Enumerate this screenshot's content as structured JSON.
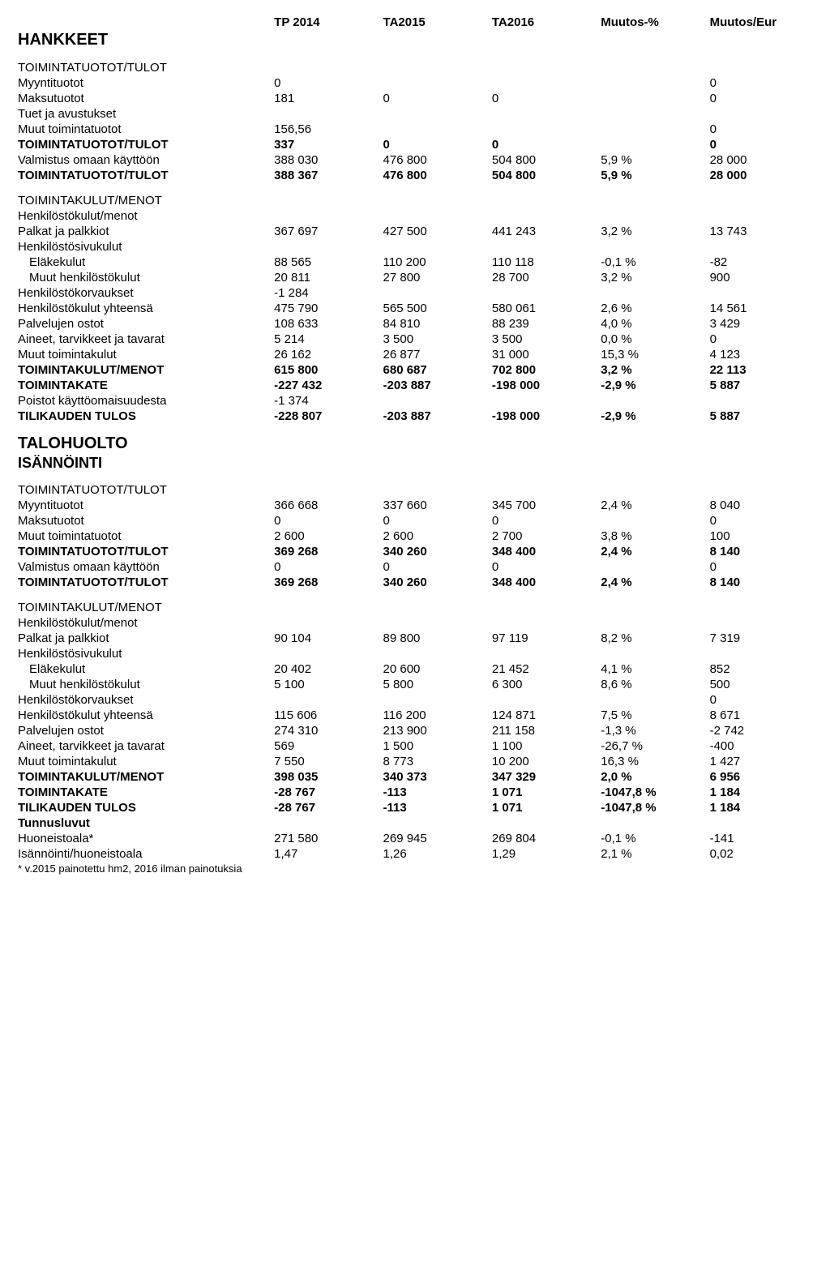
{
  "headers": {
    "c1": "TP 2014",
    "c2": "TA2015",
    "c3": "TA2016",
    "c4": "Muutos-%",
    "c5": "Muutos/Eur"
  },
  "sec1": {
    "title": "HANKKEET",
    "sub": "TOIMINTATUOTOT/TULOT",
    "r1": {
      "l": "Myyntituotot",
      "c1": "0",
      "c5": "0"
    },
    "r2": {
      "l": "Maksutuotot",
      "c1": "181",
      "c2": "0",
      "c3": "0",
      "c5": "0"
    },
    "r3": {
      "l": "Tuet ja avustukset"
    },
    "r4": {
      "l": "Muut toimintatuotot",
      "c1": "156,56",
      "c5": "0"
    },
    "r5": {
      "l": "TOIMINTATUOTOT/TULOT",
      "c1": "337",
      "c2": "0",
      "c3": "0",
      "c5": "0"
    },
    "r6": {
      "l": "Valmistus omaan käyttöön",
      "c1": "388 030",
      "c2": "476 800",
      "c3": "504 800",
      "c4": "5,9 %",
      "c5": "28 000"
    },
    "r7": {
      "l": "TOIMINTATUOTOT/TULOT",
      "c1": "388 367",
      "c2": "476 800",
      "c3": "504 800",
      "c4": "5,9 %",
      "c5": "28 000"
    }
  },
  "sec2": {
    "sub1": "TOIMINTAKULUT/MENOT",
    "sub2": "Henkilöstökulut/menot",
    "r1": {
      "l": "Palkat ja palkkiot",
      "c1": "367 697",
      "c2": "427 500",
      "c3": "441 243",
      "c4": "3,2 %",
      "c5": "13 743"
    },
    "r2": {
      "l": "Henkilöstösivukulut"
    },
    "r3": {
      "l": "Eläkekulut",
      "c1": "88 565",
      "c2": "110 200",
      "c3": "110 118",
      "c4": "-0,1 %",
      "c5": "-82"
    },
    "r4": {
      "l": "Muut henkilöstökulut",
      "c1": "20 811",
      "c2": "27 800",
      "c3": "28 700",
      "c4": "3,2 %",
      "c5": "900"
    },
    "r5": {
      "l": "Henkilöstökorvaukset",
      "c1": "-1 284"
    },
    "r6": {
      "l": "Henkilöstökulut yhteensä",
      "c1": "475 790",
      "c2": "565 500",
      "c3": "580 061",
      "c4": "2,6 %",
      "c5": "14 561"
    },
    "r7": {
      "l": "Palvelujen ostot",
      "c1": "108 633",
      "c2": "84 810",
      "c3": "88 239",
      "c4": "4,0 %",
      "c5": "3 429"
    },
    "r8": {
      "l": "Aineet, tarvikkeet ja tavarat",
      "c1": "5 214",
      "c2": "3 500",
      "c3": "3 500",
      "c4": "0,0 %",
      "c5": "0"
    },
    "r9": {
      "l": "Muut toimintakulut",
      "c1": "26 162",
      "c2": "26 877",
      "c3": "31 000",
      "c4": "15,3 %",
      "c5": "4 123"
    },
    "r10": {
      "l": "TOIMINTAKULUT/MENOT",
      "c1": "615 800",
      "c2": "680 687",
      "c3": "702 800",
      "c4": "3,2 %",
      "c5": "22 113"
    },
    "r11": {
      "l": "TOIMINTAKATE",
      "c1": "-227 432",
      "c2": "-203 887",
      "c3": "-198 000",
      "c4": "-2,9 %",
      "c5": "5 887"
    },
    "r12": {
      "l": "Poistot käyttöomaisuudesta",
      "c1": "-1 374"
    },
    "r13": {
      "l": "TILIKAUDEN TULOS",
      "c1": "-228 807",
      "c2": "-203 887",
      "c3": "-198 000",
      "c4": "-2,9 %",
      "c5": "5 887"
    }
  },
  "sec3": {
    "title": "TALOHUOLTO",
    "subtitle": "ISÄNNÖINTI",
    "sub": "TOIMINTATUOTOT/TULOT",
    "r1": {
      "l": "Myyntituotot",
      "c1": "366 668",
      "c2": "337 660",
      "c3": "345 700",
      "c4": "2,4 %",
      "c5": "8 040"
    },
    "r2": {
      "l": "Maksutuotot",
      "c1": "0",
      "c2": "0",
      "c3": "0",
      "c5": "0"
    },
    "r3": {
      "l": "Muut toimintatuotot",
      "c1": "2 600",
      "c2": "2 600",
      "c3": "2 700",
      "c4": "3,8 %",
      "c5": "100"
    },
    "r4": {
      "l": "TOIMINTATUOTOT/TULOT",
      "c1": "369 268",
      "c2": "340 260",
      "c3": "348 400",
      "c4": "2,4 %",
      "c5": "8 140"
    },
    "r5": {
      "l": "Valmistus omaan käyttöön",
      "c1": "0",
      "c2": "0",
      "c3": "0",
      "c5": "0"
    },
    "r6": {
      "l": "TOIMINTATUOTOT/TULOT",
      "c1": "369 268",
      "c2": "340 260",
      "c3": "348 400",
      "c4": "2,4 %",
      "c5": "8 140"
    }
  },
  "sec4": {
    "sub1": "TOIMINTAKULUT/MENOT",
    "sub2": "Henkilöstökulut/menot",
    "r1": {
      "l": "Palkat ja palkkiot",
      "c1": "90 104",
      "c2": "89 800",
      "c3": "97 119",
      "c4": "8,2 %",
      "c5": "7 319"
    },
    "r2": {
      "l": "Henkilöstösivukulut"
    },
    "r3": {
      "l": "Eläkekulut",
      "c1": "20 402",
      "c2": "20 600",
      "c3": "21 452",
      "c4": "4,1 %",
      "c5": "852"
    },
    "r4": {
      "l": "Muut henkilöstökulut",
      "c1": "5 100",
      "c2": "5 800",
      "c3": "6 300",
      "c4": "8,6 %",
      "c5": "500"
    },
    "r5": {
      "l": "Henkilöstökorvaukset",
      "c5": "0"
    },
    "r6": {
      "l": "Henkilöstökulut yhteensä",
      "c1": "115 606",
      "c2": "116 200",
      "c3": "124 871",
      "c4": "7,5 %",
      "c5": "8 671"
    },
    "r7": {
      "l": "Palvelujen ostot",
      "c1": "274 310",
      "c2": "213 900",
      "c3": "211 158",
      "c4": "-1,3 %",
      "c5": "-2 742"
    },
    "r8": {
      "l": "Aineet, tarvikkeet ja tavarat",
      "c1": "569",
      "c2": "1 500",
      "c3": "1 100",
      "c4": "-26,7 %",
      "c5": "-400"
    },
    "r9": {
      "l": "Muut toimintakulut",
      "c1": "7 550",
      "c2": "8 773",
      "c3": "10 200",
      "c4": "16,3 %",
      "c5": "1 427"
    },
    "r10": {
      "l": "TOIMINTAKULUT/MENOT",
      "c1": "398 035",
      "c2": "340 373",
      "c3": "347 329",
      "c4": "2,0 %",
      "c5": "6 956"
    },
    "r11": {
      "l": "TOIMINTAKATE",
      "c1": "-28 767",
      "c2": "-113",
      "c3": "1 071",
      "c4": "-1047,8 %",
      "c5": "1 184"
    },
    "r12": {
      "l": "TILIKAUDEN TULOS",
      "c1": "-28 767",
      "c2": "-113",
      "c3": "1 071",
      "c4": "-1047,8 %",
      "c5": "1 184"
    },
    "tun": "Tunnusluvut",
    "r13": {
      "l": "Huoneistoala*",
      "c1": "271 580",
      "c2": "269 945",
      "c3": "269 804",
      "c4": "-0,1 %",
      "c5": "-141"
    },
    "r14": {
      "l": "Isännöinti/huoneistoala",
      "c1": "1,47",
      "c2": "1,26",
      "c3": "1,29",
      "c4": "2,1 %",
      "c5": "0,02"
    },
    "foot": "* v.2015 painotettu hm2,  2016 ilman painotuksia"
  }
}
